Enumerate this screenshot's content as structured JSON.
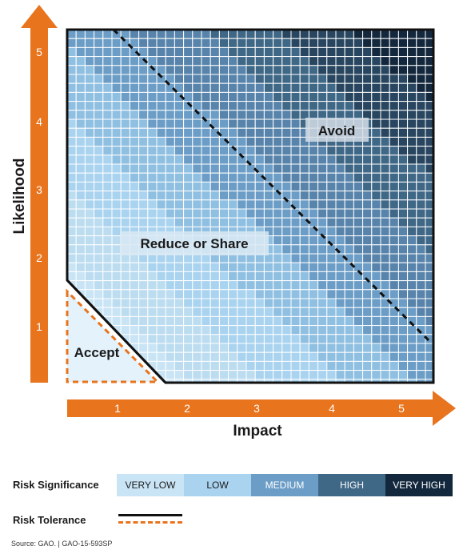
{
  "axes": {
    "x_label": "Impact",
    "y_label": "Likelihood",
    "x_ticks": [
      "1",
      "2",
      "3",
      "4",
      "5"
    ],
    "y_ticks": [
      "1",
      "2",
      "3",
      "4",
      "5"
    ]
  },
  "regions": {
    "avoid": "Avoid",
    "reduce": "Reduce or Share",
    "accept": "Accept"
  },
  "legend": {
    "significance_title": "Risk Significance",
    "significance_levels": [
      {
        "label": "VERY LOW",
        "color": "#c9e4f5",
        "text_color": "#1a1a1a"
      },
      {
        "label": "LOW",
        "color": "#a9d3ef",
        "text_color": "#1a1a1a"
      },
      {
        "label": "MEDIUM",
        "color": "#6b9dc6",
        "text_color": "#ffffff"
      },
      {
        "label": "HIGH",
        "color": "#3f6786",
        "text_color": "#ffffff"
      },
      {
        "label": "VERY HIGH",
        "color": "#13283d",
        "text_color": "#ffffff"
      }
    ],
    "tolerance_title": "Risk Tolerance"
  },
  "colors": {
    "arrow": "#e8741e",
    "tolerance_solid": "#111111",
    "tolerance_dash": "#e8741e"
  },
  "source": "Source: GAO.  |  GAO-15-593SP"
}
